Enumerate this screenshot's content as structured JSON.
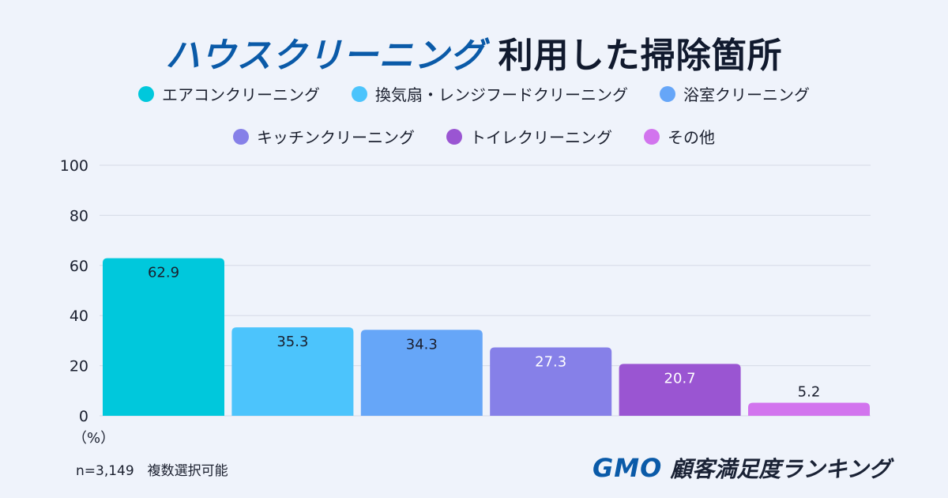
{
  "title": {
    "part1": "ハウスクリーニング",
    "part2": "利用した掃除箇所"
  },
  "chart_data": {
    "type": "bar",
    "categories": [
      "エアコンクリーニング",
      "換気扇・レンジフードクリーニング",
      "浴室クリーニング",
      "キッチンクリーニング",
      "トイレクリーニング",
      "その他"
    ],
    "values": [
      62.9,
      35.3,
      34.3,
      27.3,
      20.7,
      5.2
    ],
    "colors": [
      "#00c8dc",
      "#4cc4fc",
      "#66a6f8",
      "#8680e8",
      "#9a55d2",
      "#d274ee"
    ],
    "label_colors": [
      "#1a1f2e",
      "#1a1f2e",
      "#1a1f2e",
      "#ffffff",
      "#ffffff",
      "#1a1f2e"
    ],
    "ylim": [
      0,
      100
    ],
    "yticks": [
      0,
      20,
      40,
      60,
      80,
      100
    ],
    "ylabel": "（%）",
    "grid": true,
    "legend_placement": "top"
  },
  "footnote": "n=3,149　複数選択可能",
  "logo": {
    "gmo": "GMO",
    "text": "顧客満足度ランキング"
  }
}
